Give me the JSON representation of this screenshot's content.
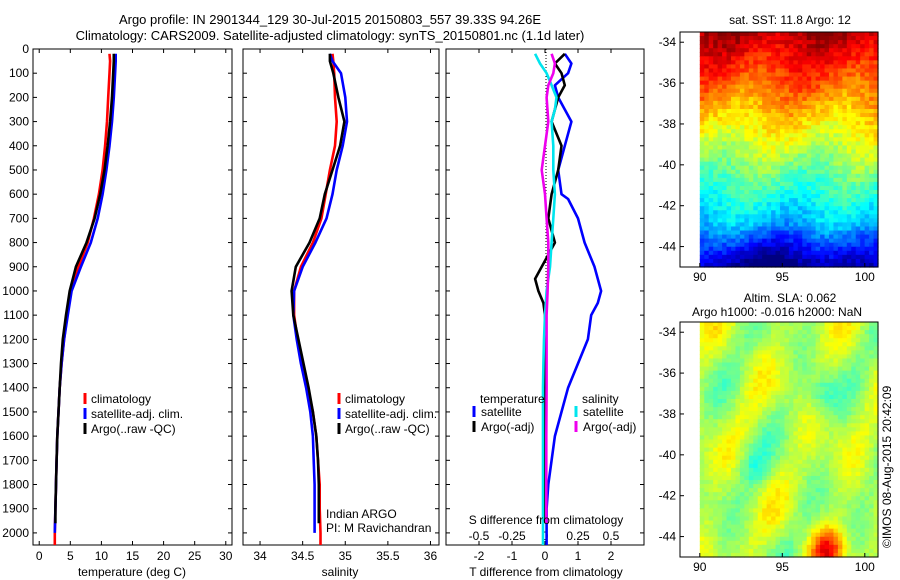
{
  "header": {
    "line1": "Argo profile: IN 2901344_129 30-Jul-2015 20150803_557 39.33S 94.26E",
    "line2": "Climatology: CARS2009. Satellite-adjusted climatology: synTS_20150801.nc (1.1d later)"
  },
  "credits": {
    "line1": "Indian ARGO",
    "line2": "PI: M Ravichandran",
    "stamp": "©IMOS 08-Aug-2015 20:42:09"
  },
  "colors": {
    "climatology": "#ff0000",
    "satellite": "#0000ff",
    "argo": "#000000",
    "sal_satellite": "#00e5ee",
    "sal_argo": "#ee00ee"
  },
  "chart_data": [
    {
      "id": "temperature",
      "type": "line",
      "xlabel": "temperature (deg C)",
      "ylabel": "",
      "xlim": [
        -1,
        31
      ],
      "ylim": [
        2050,
        0
      ],
      "xticks": [
        0,
        5,
        10,
        15,
        20,
        25,
        30
      ],
      "yticks": [
        0,
        100,
        200,
        300,
        400,
        500,
        600,
        700,
        800,
        900,
        1000,
        1100,
        1200,
        1300,
        1400,
        1500,
        1600,
        1700,
        1800,
        1900,
        2000
      ],
      "legend": [
        "climatology",
        "satellite-adj. clim.",
        "Argo(..raw -QC)"
      ],
      "series": [
        {
          "name": "climatology",
          "color": "#ff0000",
          "x": [
            11.3,
            11.4,
            11.3,
            11.1,
            10.9,
            10.6,
            10.2,
            9.6,
            8.8,
            7.8,
            6.3,
            5.0,
            4.5,
            4.0,
            3.6,
            3.3,
            3.1,
            2.9,
            2.8,
            2.7,
            2.6,
            2.5,
            2.5
          ],
          "y": [
            20,
            50,
            100,
            200,
            300,
            400,
            500,
            600,
            700,
            800,
            900,
            1000,
            1100,
            1200,
            1300,
            1400,
            1500,
            1600,
            1700,
            1800,
            1900,
            2000,
            2050
          ]
        },
        {
          "name": "satellite-adj. clim.",
          "color": "#0000ff",
          "x": [
            12.3,
            12.3,
            12.2,
            12.0,
            11.7,
            11.3,
            10.8,
            10.2,
            9.4,
            8.3,
            6.7,
            5.2,
            4.6,
            4.0,
            3.6,
            3.3,
            3.1,
            2.9,
            2.8,
            2.7,
            2.6,
            2.5
          ],
          "y": [
            20,
            50,
            100,
            200,
            300,
            400,
            500,
            600,
            700,
            800,
            900,
            1000,
            1100,
            1200,
            1300,
            1400,
            1500,
            1600,
            1700,
            1800,
            1900,
            2000
          ]
        },
        {
          "name": "Argo(..raw -QC)",
          "color": "#000000",
          "x": [
            12.0,
            12.0,
            11.9,
            11.7,
            11.4,
            11.0,
            10.5,
            9.8,
            8.9,
            7.6,
            5.9,
            4.9,
            4.3,
            3.8,
            3.5,
            3.3,
            3.1,
            2.9,
            2.8,
            2.7,
            2.6,
            2.6
          ],
          "y": [
            20,
            50,
            100,
            200,
            300,
            400,
            500,
            600,
            700,
            800,
            900,
            1000,
            1100,
            1200,
            1300,
            1400,
            1500,
            1600,
            1700,
            1800,
            1900,
            1960
          ]
        }
      ]
    },
    {
      "id": "salinity",
      "type": "line",
      "xlabel": "salinity",
      "ylabel": "",
      "xlim": [
        33.8,
        36.1
      ],
      "ylim": [
        2050,
        0
      ],
      "xticks": [
        34,
        34.5,
        35,
        35.5,
        36
      ],
      "legend": [
        "climatology",
        "satellite-adj. clim.",
        "Argo(..raw -QC)"
      ],
      "series": [
        {
          "name": "climatology",
          "color": "#ff0000",
          "x": [
            34.85,
            34.86,
            34.87,
            34.88,
            34.9,
            34.88,
            34.82,
            34.77,
            34.72,
            34.62,
            34.48,
            34.4,
            34.4,
            34.44,
            34.5,
            34.56,
            34.62,
            34.66,
            34.68,
            34.7,
            34.7,
            34.71,
            34.71
          ],
          "y": [
            20,
            50,
            100,
            200,
            300,
            400,
            500,
            600,
            700,
            800,
            900,
            1000,
            1100,
            1200,
            1300,
            1400,
            1500,
            1600,
            1700,
            1800,
            1900,
            2000,
            2050
          ]
        },
        {
          "name": "satellite-adj. clim.",
          "color": "#0000ff",
          "x": [
            34.82,
            34.85,
            34.95,
            35.0,
            35.02,
            34.97,
            34.9,
            34.85,
            34.78,
            34.65,
            34.5,
            34.4,
            34.39,
            34.43,
            34.48,
            34.54,
            34.59,
            34.62,
            34.63,
            34.64,
            34.64,
            34.64
          ],
          "y": [
            20,
            50,
            100,
            200,
            300,
            400,
            500,
            600,
            700,
            800,
            900,
            1000,
            1100,
            1200,
            1300,
            1400,
            1500,
            1600,
            1700,
            1800,
            1900,
            2000
          ]
        },
        {
          "name": "Argo(..raw -QC)",
          "color": "#000000",
          "x": [
            34.82,
            34.82,
            34.86,
            34.92,
            34.99,
            34.94,
            34.85,
            34.76,
            34.7,
            34.58,
            34.42,
            34.37,
            34.39,
            34.45,
            34.51,
            34.57,
            34.62,
            34.66,
            34.68,
            34.69,
            34.69,
            34.69
          ],
          "y": [
            20,
            50,
            100,
            200,
            300,
            400,
            500,
            600,
            700,
            800,
            900,
            1000,
            1100,
            1200,
            1300,
            1400,
            1500,
            1600,
            1700,
            1800,
            1900,
            1960
          ]
        }
      ]
    },
    {
      "id": "differences",
      "type": "line",
      "xlabel": "T difference from climatology",
      "x2label": "S difference from climatology",
      "ylabel": "",
      "xlim": [
        -3,
        3
      ],
      "ylim": [
        2050,
        0
      ],
      "xticks": [
        -2,
        -1,
        0,
        1,
        2
      ],
      "x2ticks": [
        -0.5,
        -0.25,
        0,
        0.25,
        0.5
      ],
      "x2ticklabels": [
        "-0.5",
        "-0.25",
        "0",
        "0.25",
        "0.5"
      ],
      "legend_groups": [
        "temperature",
        "salinity"
      ],
      "legend": [
        "satellite",
        "Argo(-adj)",
        "satellite",
        "Argo(-adj)"
      ],
      "series": [
        {
          "name": "temperature satellite",
          "color": "#0000ff",
          "x": [
            0.6,
            0.8,
            0.7,
            0.3,
            0.4,
            0.6,
            0.8,
            0.6,
            0.4,
            0.5,
            0.7,
            1.0,
            1.2,
            1.5,
            1.7,
            1.6,
            1.4,
            1.3,
            1.0,
            0.7,
            0.5,
            0.3,
            0.2,
            0.1,
            0.05,
            0.05,
            0.05
          ],
          "y": [
            20,
            60,
            100,
            150,
            200,
            250,
            300,
            400,
            500,
            600,
            620,
            700,
            800,
            900,
            1000,
            1050,
            1100,
            1200,
            1300,
            1400,
            1500,
            1600,
            1700,
            1800,
            1900,
            2000,
            2050
          ]
        },
        {
          "name": "temperature Argo(-adj)",
          "color": "#000000",
          "x": [
            0.6,
            0.3,
            0.5,
            0.6,
            0.4,
            0.2,
            0.5,
            0.4,
            0.2,
            0.1,
            0.2,
            0.3,
            0.1,
            -0.1,
            -0.3,
            -0.2,
            -0.05,
            0.0,
            0.0,
            0.0,
            0.0,
            0.0
          ],
          "y": [
            20,
            60,
            100,
            150,
            200,
            300,
            400,
            500,
            600,
            700,
            750,
            800,
            850,
            900,
            950,
            1000,
            1050,
            1100,
            1300,
            1600,
            1900,
            1960
          ]
        },
        {
          "name": "salinity satellite",
          "color": "#00e5ee",
          "x": [
            -0.3,
            -0.15,
            0.05,
            0.2,
            0.35,
            0.3,
            0.2,
            0.25,
            0.25,
            0.3,
            0.25,
            0.2,
            0.15,
            0.05,
            0.0,
            -0.03,
            -0.05,
            -0.06,
            -0.06,
            -0.06,
            -0.06,
            -0.06,
            -0.06
          ],
          "y": [
            20,
            60,
            100,
            150,
            200,
            250,
            300,
            400,
            500,
            600,
            700,
            800,
            900,
            1000,
            1100,
            1200,
            1300,
            1400,
            1500,
            1600,
            1700,
            1800,
            2050
          ]
        },
        {
          "name": "salinity Argo(-adj)",
          "color": "#ee00ee",
          "x": [
            0.2,
            0.3,
            0.25,
            0.1,
            0.05,
            0.1,
            0.0,
            -0.1,
            0.0,
            0.05,
            0.1,
            0.1,
            0.08,
            0.05,
            0.05,
            0.05,
            0.04,
            0.04,
            0.04,
            0.04,
            0.04
          ],
          "y": [
            20,
            60,
            100,
            150,
            200,
            300,
            400,
            500,
            600,
            700,
            800,
            900,
            1000,
            1100,
            1200,
            1400,
            1600,
            1700,
            1800,
            1900,
            1960
          ]
        }
      ]
    },
    {
      "id": "sst_map",
      "type": "heatmap",
      "title": "sat. SST: 11.8 Argo: 12",
      "xlim": [
        88.8,
        100.8
      ],
      "ylim": [
        -45,
        -33.5
      ],
      "xticks": [
        90,
        95,
        100
      ],
      "yticks": [
        -34,
        -36,
        -38,
        -40,
        -42,
        -44
      ],
      "data_xlim": [
        90,
        100.8
      ]
    },
    {
      "id": "sla_map",
      "type": "heatmap",
      "title": "Altim. SLA: 0.062",
      "subtitle": "Argo h1000: -0.016 h2000: NaN",
      "xlim": [
        88.8,
        100.8
      ],
      "ylim": [
        -45,
        -33.5
      ],
      "xticks": [
        90,
        95,
        100
      ],
      "yticks": [
        -34,
        -36,
        -38,
        -40,
        -42,
        -44
      ],
      "data_xlim": [
        90,
        100.8
      ]
    }
  ]
}
